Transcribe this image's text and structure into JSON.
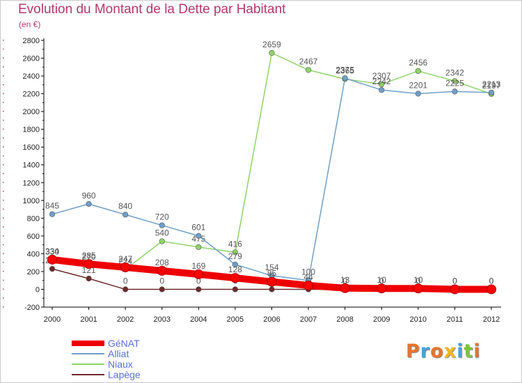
{
  "title": "Evolution du Montant de la Dette par Habitant",
  "unit_label": "(en €)",
  "logo": {
    "text": "Proxiti",
    "colors": [
      "#e8742a",
      "#4aa1d8",
      "#e8742a",
      "#f2b71f",
      "#4aa1d8",
      "#7cc243",
      "#e8742a"
    ]
  },
  "chart_data": {
    "type": "line",
    "x": [
      "2000",
      "2001",
      "2002",
      "2003",
      "2004",
      "2005",
      "2006",
      "2007",
      "2008",
      "2009",
      "2010",
      "2011",
      "2012"
    ],
    "ylim": [
      -200,
      2800
    ],
    "yticks": [
      "-200",
      "0",
      "200",
      "400",
      "600",
      "800",
      "1000",
      "1200",
      "1400",
      "1600",
      "1800",
      "2000",
      "2200",
      "2400",
      "2600",
      "2800"
    ],
    "grid": false,
    "legend_position": "bottom-left",
    "series": [
      {
        "name": "Lapège",
        "color": "#6e2a2a",
        "values": [
          230,
          121,
          0,
          0,
          0,
          0,
          0,
          0,
          0,
          0,
          0,
          0,
          0
        ],
        "labels": [
          "230",
          "121",
          "0",
          "0",
          "0",
          "0",
          "0",
          "0",
          "0",
          "0",
          "0",
          "0",
          "0"
        ]
      },
      {
        "name": "Niaux",
        "color": "#8ed467",
        "values": [
          330,
          270,
          224,
          540,
          475,
          416,
          2659,
          2467,
          2365,
          2307,
          2456,
          2342,
          2197
        ],
        "labels": [
          "330",
          "270",
          "224",
          "540",
          "475",
          "416",
          "2659",
          "2467",
          "2365",
          "2307",
          "2456",
          "2342",
          "2197"
        ]
      },
      {
        "name": "Alliat",
        "color": "#6f9fc8",
        "values": [
          845,
          960,
          840,
          720,
          601,
          279,
          154,
          100,
          2375,
          2242,
          2201,
          2225,
          2213
        ],
        "labels": [
          "845",
          "960",
          "840",
          "720",
          "601",
          "279",
          "154",
          "100",
          "2375",
          "2242",
          "2201",
          "2225",
          "2213"
        ]
      },
      {
        "name": "GéNAT",
        "color": "#ee0000",
        "values": [
          334,
          285,
          247,
          208,
          169,
          128,
          85,
          44,
          13,
          10,
          10,
          0,
          0
        ],
        "labels": [
          "334",
          "285",
          "247",
          "208",
          "169",
          "128",
          "85",
          "44",
          "13",
          "10",
          "10",
          "0",
          "0"
        ]
      }
    ]
  }
}
